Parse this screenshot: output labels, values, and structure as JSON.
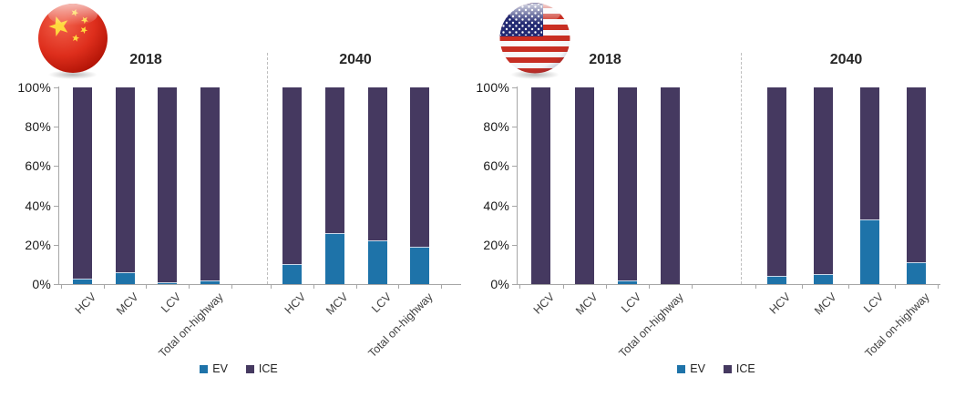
{
  "page": {
    "background": "#FFFFFF"
  },
  "palette": {
    "EV": "#1E73A9",
    "ICE": "#453960",
    "axis": "#A6A6A6",
    "divider": "#BFBFBF",
    "tick_text": "#1A1A1A",
    "category_text": "#3F3F3F"
  },
  "chart_data": [
    {
      "type": "bar",
      "stacked": true,
      "units": "percent",
      "region": "China",
      "flag": "china-flag-icon",
      "y_axis": {
        "ticks": [
          "100%",
          "80%",
          "60%",
          "40%",
          "20%",
          "0%"
        ],
        "range": [
          0,
          100
        ],
        "grid": false
      },
      "categories": [
        "HCV",
        "MCV",
        "LCV",
        "Total on-highway"
      ],
      "legend": {
        "entries": [
          "EV",
          "ICE"
        ],
        "position": "bottom"
      },
      "groups": [
        {
          "label": "2018",
          "series": [
            {
              "name": "EV",
              "values": [
                3,
                6,
                1,
                2
              ]
            },
            {
              "name": "ICE",
              "values": [
                97,
                94,
                99,
                98
              ]
            }
          ]
        },
        {
          "label": "2040",
          "series": [
            {
              "name": "EV",
              "values": [
                10,
                26,
                22,
                19
              ]
            },
            {
              "name": "ICE",
              "values": [
                90,
                74,
                78,
                81
              ]
            }
          ]
        }
      ]
    },
    {
      "type": "bar",
      "stacked": true,
      "units": "percent",
      "region": "United States",
      "flag": "usa-flag-icon",
      "y_axis": {
        "ticks": [
          "100%",
          "80%",
          "60%",
          "40%",
          "20%",
          "0%"
        ],
        "range": [
          0,
          100
        ],
        "grid": false
      },
      "categories": [
        "HCV",
        "MCV",
        "LCV",
        "Total on-highway"
      ],
      "legend": {
        "entries": [
          "EV",
          "ICE"
        ],
        "position": "bottom"
      },
      "groups": [
        {
          "label": "2018",
          "series": [
            {
              "name": "EV",
              "values": [
                0,
                0,
                2,
                0
              ]
            },
            {
              "name": "ICE",
              "values": [
                100,
                100,
                98,
                100
              ]
            }
          ]
        },
        {
          "label": "2040",
          "series": [
            {
              "name": "EV",
              "values": [
                4,
                5,
                33,
                11
              ]
            },
            {
              "name": "ICE",
              "values": [
                96,
                95,
                67,
                89
              ]
            }
          ]
        }
      ]
    }
  ]
}
